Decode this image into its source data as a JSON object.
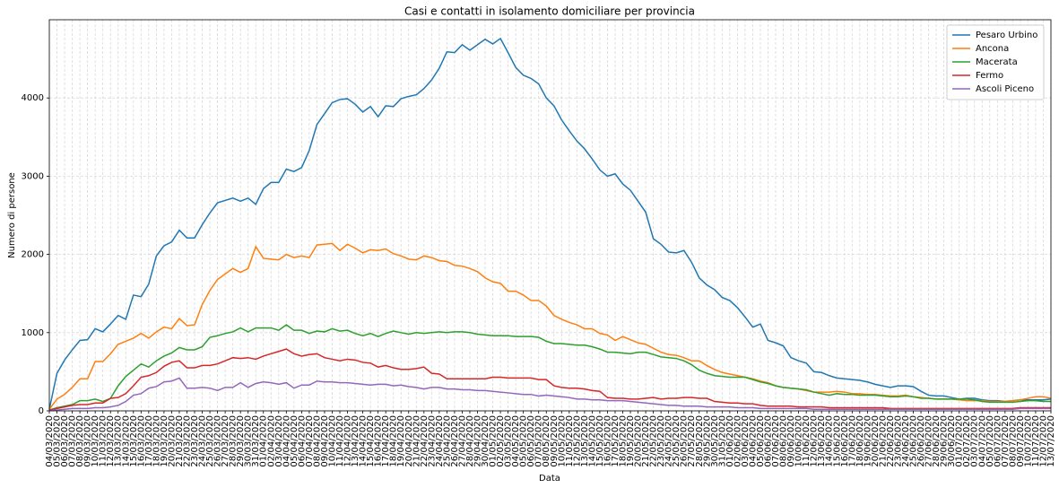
{
  "chart_data": {
    "type": "line",
    "title": "Casi e contatti in isolamento domiciliare per provincia",
    "x_label": "Data",
    "y_label": "Numero di persone",
    "x": [
      "04/03/2020",
      "05/03/2020",
      "06/03/2020",
      "07/03/2020",
      "08/03/2020",
      "09/03/2020",
      "10/03/2020",
      "11/03/2020",
      "12/03/2020",
      "13/03/2020",
      "14/03/2020",
      "15/03/2020",
      "16/03/2020",
      "17/03/2020",
      "18/03/2020",
      "19/03/2020",
      "20/03/2020",
      "21/03/2020",
      "22/03/2020",
      "23/03/2020",
      "24/03/2020",
      "25/03/2020",
      "26/03/2020",
      "27/03/2020",
      "28/03/2020",
      "29/03/2020",
      "30/03/2020",
      "31/03/2020",
      "01/04/2020",
      "02/04/2020",
      "03/04/2020",
      "04/04/2020",
      "05/04/2020",
      "06/04/2020",
      "07/04/2020",
      "08/04/2020",
      "09/04/2020",
      "10/04/2020",
      "11/04/2020",
      "12/04/2020",
      "13/04/2020",
      "14/04/2020",
      "15/04/2020",
      "16/04/2020",
      "17/04/2020",
      "18/04/2020",
      "19/04/2020",
      "20/04/2020",
      "21/04/2020",
      "22/04/2020",
      "23/04/2020",
      "24/04/2020",
      "25/04/2020",
      "26/04/2020",
      "27/04/2020",
      "28/04/2020",
      "29/04/2020",
      "30/04/2020",
      "01/05/2020",
      "02/05/2020",
      "03/05/2020",
      "04/05/2020",
      "05/05/2020",
      "06/05/2020",
      "07/05/2020",
      "08/05/2020",
      "09/05/2020",
      "10/05/2020",
      "11/05/2020",
      "12/05/2020",
      "13/05/2020",
      "14/05/2020",
      "15/05/2020",
      "16/05/2020",
      "17/05/2020",
      "18/05/2020",
      "19/05/2020",
      "20/05/2020",
      "21/05/2020",
      "22/05/2020",
      "23/05/2020",
      "24/05/2020",
      "25/05/2020",
      "26/05/2020",
      "27/05/2020",
      "28/05/2020",
      "29/05/2020",
      "30/05/2020",
      "31/05/2020",
      "01/06/2020",
      "02/06/2020",
      "03/06/2020",
      "04/06/2020",
      "05/06/2020",
      "06/06/2020",
      "07/06/2020",
      "08/06/2020",
      "09/06/2020",
      "10/06/2020",
      "11/06/2020",
      "12/06/2020",
      "13/06/2020",
      "14/06/2020",
      "15/06/2020",
      "16/06/2020",
      "17/06/2020",
      "18/06/2020",
      "19/06/2020",
      "20/06/2020",
      "21/06/2020",
      "22/06/2020",
      "23/06/2020",
      "24/06/2020",
      "25/06/2020",
      "26/06/2020",
      "27/06/2020",
      "28/06/2020",
      "29/06/2020",
      "30/06/2020",
      "01/07/2020",
      "02/07/2020",
      "03/07/2020",
      "04/07/2020",
      "05/07/2020",
      "06/07/2020",
      "07/07/2020",
      "08/07/2020",
      "09/07/2020",
      "10/07/2020",
      "11/07/2020",
      "12/07/2020",
      "13/07/2020"
    ],
    "series": [
      {
        "name": "Pesaro Urbino",
        "color": "#1f77b4",
        "values": [
          20,
          480,
          650,
          780,
          900,
          910,
          1050,
          1010,
          1110,
          1220,
          1170,
          1480,
          1460,
          1620,
          1980,
          2110,
          2160,
          2310,
          2210,
          2210,
          2380,
          2530,
          2660,
          2690,
          2720,
          2680,
          2720,
          2640,
          2840,
          2920,
          2920,
          3090,
          3060,
          3110,
          3330,
          3660,
          3800,
          3940,
          3980,
          3990,
          3920,
          3820,
          3890,
          3760,
          3900,
          3890,
          3990,
          4020,
          4040,
          4120,
          4230,
          4380,
          4590,
          4580,
          4680,
          4610,
          4680,
          4750,
          4690,
          4760,
          4580,
          4390,
          4290,
          4250,
          4180,
          4000,
          3900,
          3720,
          3580,
          3450,
          3350,
          3220,
          3080,
          3000,
          3030,
          2900,
          2820,
          2680,
          2540,
          2200,
          2130,
          2030,
          2020,
          2050,
          1900,
          1700,
          1610,
          1550,
          1450,
          1410,
          1320,
          1200,
          1070,
          1110,
          900,
          870,
          830,
          680,
          640,
          610,
          500,
          490,
          450,
          420,
          410,
          400,
          390,
          370,
          340,
          320,
          300,
          320,
          320,
          310,
          250,
          200,
          190,
          190,
          170,
          150,
          160,
          160,
          140,
          130,
          130,
          120,
          130,
          140,
          140,
          140,
          140,
          150
        ]
      },
      {
        "name": "Ancona",
        "color": "#ff7f0e",
        "values": [
          20,
          150,
          210,
          300,
          410,
          410,
          630,
          630,
          730,
          850,
          890,
          930,
          990,
          930,
          1010,
          1070,
          1050,
          1180,
          1090,
          1100,
          1360,
          1540,
          1680,
          1750,
          1820,
          1770,
          1820,
          2100,
          1950,
          1940,
          1930,
          2000,
          1960,
          1980,
          1960,
          2120,
          2130,
          2140,
          2050,
          2130,
          2080,
          2020,
          2060,
          2050,
          2070,
          2010,
          1980,
          1940,
          1930,
          1980,
          1960,
          1920,
          1910,
          1860,
          1850,
          1820,
          1780,
          1700,
          1650,
          1630,
          1530,
          1530,
          1480,
          1410,
          1410,
          1340,
          1220,
          1170,
          1130,
          1100,
          1050,
          1050,
          990,
          970,
          900,
          950,
          910,
          870,
          850,
          800,
          750,
          720,
          710,
          680,
          640,
          640,
          580,
          530,
          490,
          470,
          450,
          430,
          410,
          380,
          360,
          320,
          300,
          290,
          280,
          260,
          240,
          240,
          240,
          250,
          240,
          220,
          220,
          210,
          210,
          200,
          190,
          190,
          200,
          180,
          170,
          160,
          150,
          150,
          150,
          140,
          130,
          130,
          130,
          120,
          120,
          120,
          130,
          140,
          160,
          180,
          180,
          160
        ]
      },
      {
        "name": "Macerata",
        "color": "#2ca02c",
        "values": [
          10,
          40,
          60,
          80,
          130,
          130,
          150,
          120,
          160,
          320,
          440,
          520,
          600,
          560,
          640,
          700,
          740,
          810,
          780,
          780,
          820,
          940,
          960,
          990,
          1010,
          1060,
          1010,
          1060,
          1060,
          1060,
          1030,
          1100,
          1030,
          1030,
          990,
          1020,
          1010,
          1050,
          1020,
          1030,
          990,
          960,
          990,
          950,
          990,
          1020,
          1000,
          980,
          1000,
          990,
          1000,
          1010,
          1000,
          1010,
          1010,
          1000,
          980,
          970,
          960,
          960,
          960,
          950,
          950,
          950,
          940,
          890,
          860,
          860,
          850,
          840,
          840,
          820,
          790,
          750,
          750,
          740,
          730,
          750,
          750,
          720,
          690,
          680,
          670,
          640,
          590,
          520,
          480,
          450,
          440,
          430,
          430,
          430,
          400,
          370,
          350,
          320,
          300,
          290,
          280,
          270,
          240,
          220,
          200,
          220,
          210,
          210,
          200,
          200,
          200,
          190,
          180,
          180,
          190,
          180,
          160,
          160,
          150,
          150,
          150,
          150,
          150,
          140,
          120,
          110,
          110,
          110,
          110,
          120,
          130,
          130,
          120,
          120
        ]
      },
      {
        "name": "Fermo",
        "color": "#d62728",
        "values": [
          10,
          30,
          50,
          70,
          80,
          80,
          100,
          100,
          160,
          170,
          220,
          320,
          430,
          450,
          490,
          570,
          620,
          640,
          550,
          550,
          580,
          580,
          600,
          640,
          680,
          670,
          680,
          660,
          700,
          730,
          760,
          790,
          730,
          700,
          720,
          730,
          680,
          660,
          640,
          660,
          650,
          620,
          610,
          560,
          580,
          550,
          530,
          530,
          540,
          560,
          480,
          470,
          410,
          410,
          410,
          410,
          410,
          410,
          430,
          430,
          420,
          420,
          420,
          420,
          400,
          400,
          320,
          300,
          290,
          290,
          280,
          260,
          250,
          170,
          160,
          160,
          150,
          150,
          160,
          170,
          150,
          160,
          160,
          170,
          170,
          160,
          160,
          120,
          110,
          100,
          100,
          90,
          90,
          70,
          60,
          60,
          60,
          60,
          50,
          50,
          50,
          50,
          40,
          40,
          40,
          40,
          40,
          40,
          40,
          40,
          30,
          30,
          30,
          30,
          30,
          30,
          30,
          30,
          30,
          30,
          30,
          30,
          30,
          30,
          30,
          30,
          30,
          40,
          40,
          40,
          40,
          40
        ]
      },
      {
        "name": "Ascoli Piceno",
        "color": "#9467bd",
        "values": [
          5,
          10,
          20,
          30,
          30,
          30,
          40,
          40,
          50,
          70,
          120,
          200,
          220,
          290,
          310,
          370,
          380,
          420,
          290,
          290,
          300,
          290,
          260,
          300,
          300,
          360,
          300,
          350,
          370,
          360,
          340,
          360,
          290,
          330,
          330,
          380,
          370,
          370,
          360,
          360,
          350,
          340,
          330,
          340,
          340,
          320,
          330,
          310,
          300,
          280,
          300,
          300,
          280,
          280,
          270,
          270,
          260,
          260,
          250,
          240,
          230,
          220,
          210,
          210,
          190,
          200,
          190,
          180,
          170,
          150,
          150,
          140,
          140,
          130,
          130,
          130,
          120,
          110,
          100,
          90,
          80,
          70,
          70,
          60,
          60,
          60,
          50,
          50,
          50,
          50,
          40,
          40,
          40,
          30,
          30,
          30,
          30,
          30,
          30,
          30,
          20,
          20,
          20,
          20,
          20,
          20,
          20,
          20,
          20,
          20,
          20,
          20,
          20,
          20,
          20,
          20,
          20,
          20,
          20,
          20,
          20,
          20,
          20,
          20,
          20,
          20,
          20,
          30,
          30,
          30,
          30,
          30
        ]
      }
    ],
    "ylim": [
      0,
      5000
    ],
    "yticks": [
      0,
      1000,
      2000,
      3000,
      4000
    ],
    "grid": true,
    "legend": "upper right"
  }
}
